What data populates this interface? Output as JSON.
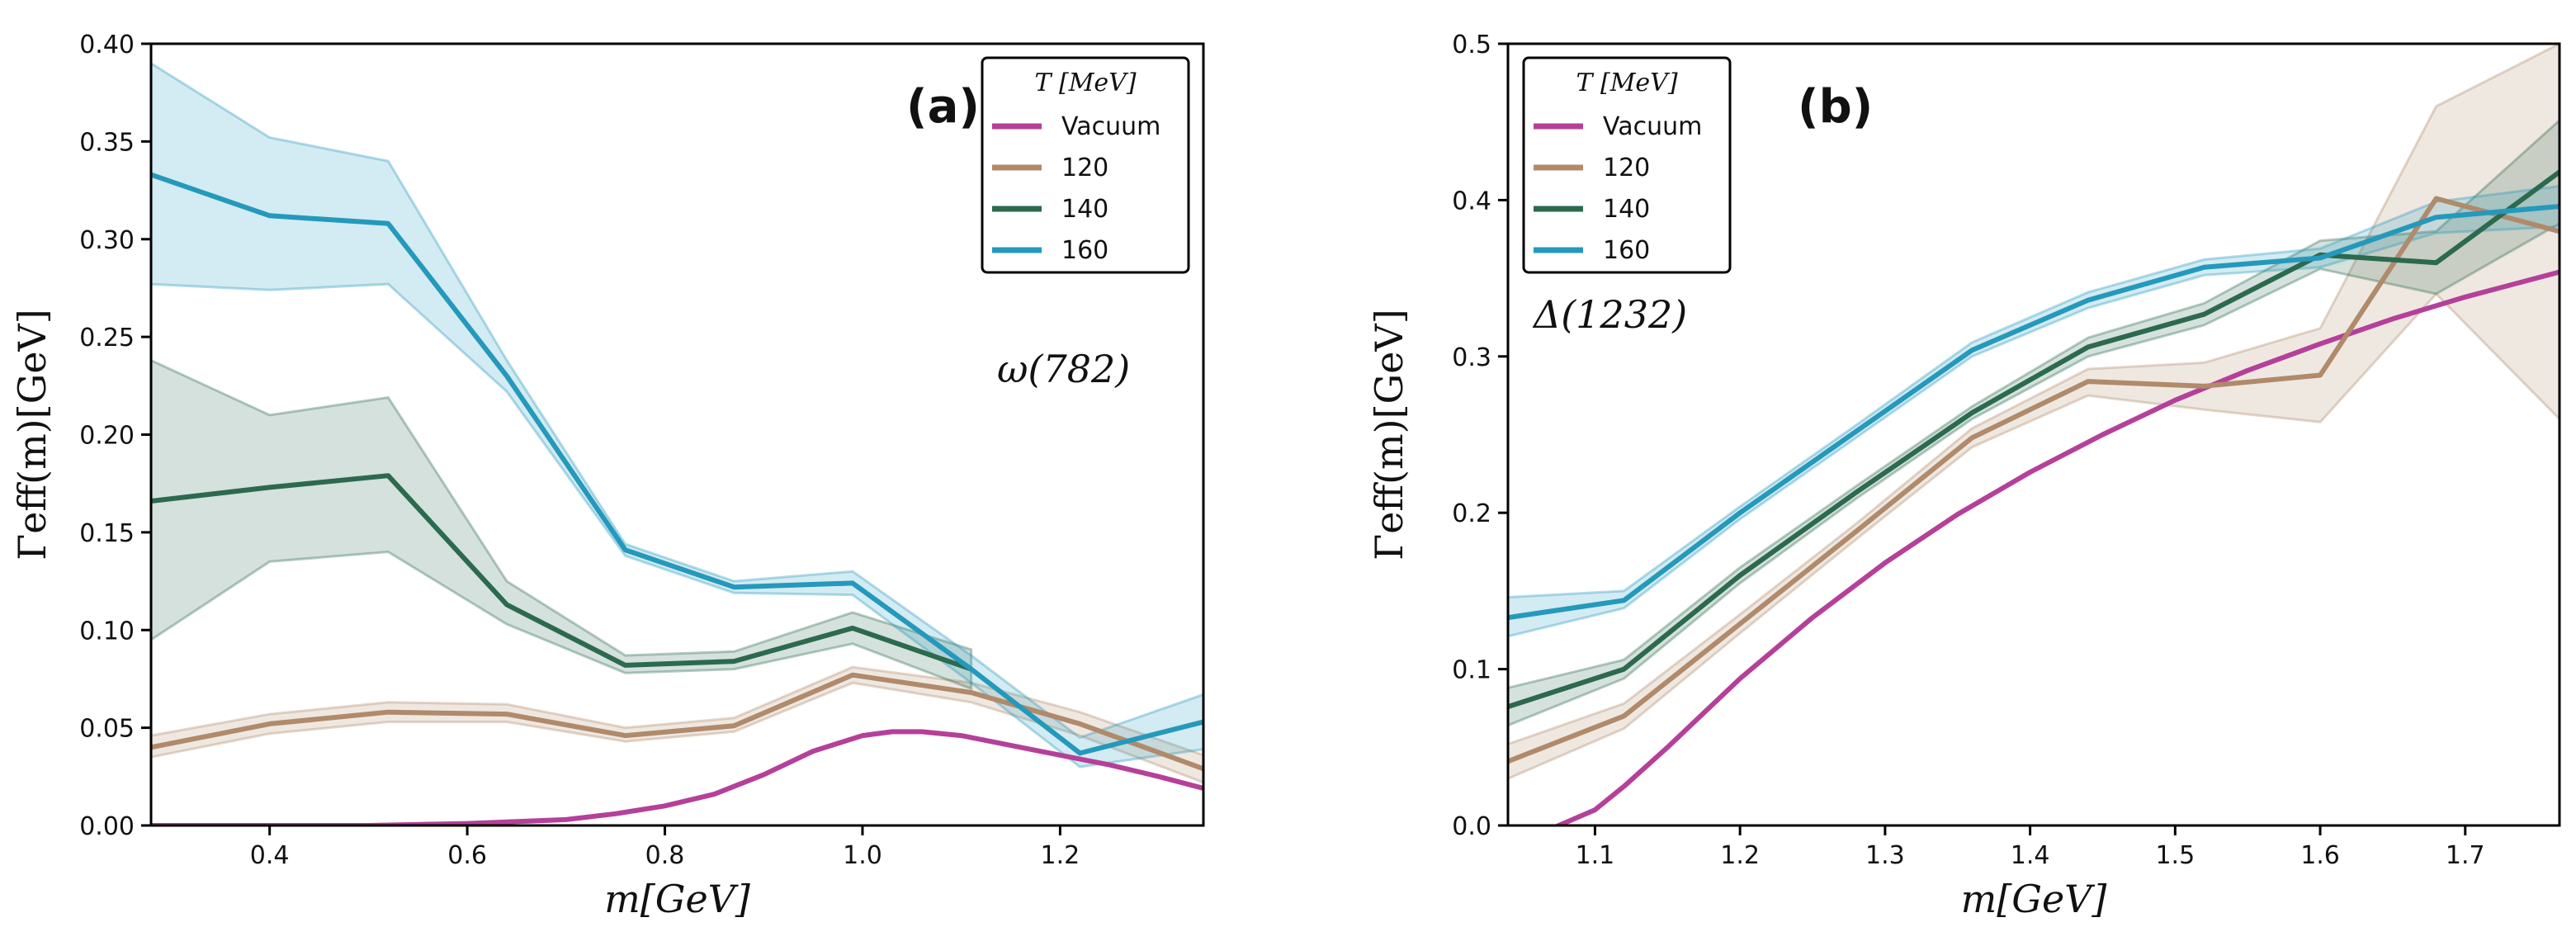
{
  "chart_data": [
    {
      "type": "line",
      "panel": "(a)",
      "panel_label_text": "(a)",
      "panel_letter": "a",
      "annotation": "ω(782)",
      "xlabel": "m[GeV]",
      "ylabel": "Γeff(m)[GeV]",
      "xlim": [
        0.28,
        1.345
      ],
      "ylim": [
        0.0,
        0.4
      ],
      "xticks": [
        0.4,
        0.6,
        0.8,
        1.0,
        1.2
      ],
      "xtick_labels": [
        "0.4",
        "0.6",
        "0.8",
        "1.0",
        "1.2"
      ],
      "yticks": [
        0.0,
        0.05,
        0.1,
        0.15,
        0.2,
        0.25,
        0.3,
        0.35,
        0.4
      ],
      "ytick_labels": [
        "0.00",
        "0.05",
        "0.10",
        "0.15",
        "0.20",
        "0.25",
        "0.30",
        "0.35",
        "0.40"
      ],
      "legend": {
        "title": "T [MeV]",
        "location": "top-right",
        "entries": [
          "Vacuum",
          "120",
          "140",
          "160"
        ]
      },
      "series": [
        {
          "name": "Vacuum",
          "color": "#b5409a",
          "x": [
            0.28,
            0.4,
            0.5,
            0.6,
            0.65,
            0.7,
            0.75,
            0.8,
            0.85,
            0.9,
            0.95,
            1.0,
            1.03,
            1.06,
            1.1,
            1.15,
            1.2,
            1.25,
            1.3,
            1.345
          ],
          "y": [
            0.0,
            0.0,
            0.0,
            0.001,
            0.002,
            0.003,
            0.006,
            0.01,
            0.016,
            0.026,
            0.038,
            0.046,
            0.048,
            0.048,
            0.046,
            0.041,
            0.036,
            0.031,
            0.025,
            0.019
          ]
        },
        {
          "name": "120",
          "color": "#b08a6a",
          "x": [
            0.28,
            0.4,
            0.52,
            0.64,
            0.76,
            0.87,
            0.99,
            1.11,
            1.22,
            1.345
          ],
          "y": [
            0.04,
            0.052,
            0.058,
            0.057,
            0.046,
            0.051,
            0.077,
            0.068,
            0.052,
            0.029
          ],
          "lower": [
            0.035,
            0.047,
            0.053,
            0.053,
            0.043,
            0.048,
            0.073,
            0.063,
            0.046,
            0.022
          ],
          "upper": [
            0.046,
            0.057,
            0.063,
            0.062,
            0.05,
            0.055,
            0.081,
            0.073,
            0.058,
            0.036
          ]
        },
        {
          "name": "140",
          "color": "#2b6a4e",
          "x": [
            0.28,
            0.4,
            0.52,
            0.64,
            0.76,
            0.87,
            0.99,
            1.11
          ],
          "y": [
            0.166,
            0.173,
            0.179,
            0.113,
            0.082,
            0.084,
            0.101,
            0.08
          ],
          "lower": [
            0.095,
            0.135,
            0.14,
            0.103,
            0.078,
            0.08,
            0.093,
            0.07
          ],
          "upper": [
            0.238,
            0.21,
            0.219,
            0.125,
            0.087,
            0.089,
            0.109,
            0.09
          ]
        },
        {
          "name": "160",
          "color": "#2499bc",
          "x": [
            0.28,
            0.4,
            0.52,
            0.64,
            0.76,
            0.87,
            0.99,
            1.11,
            1.22,
            1.345
          ],
          "y": [
            0.333,
            0.312,
            0.308,
            0.23,
            0.141,
            0.122,
            0.124,
            0.08,
            0.037,
            0.053
          ],
          "lower": [
            0.277,
            0.274,
            0.277,
            0.222,
            0.138,
            0.119,
            0.118,
            0.073,
            0.03,
            0.039
          ],
          "upper": [
            0.39,
            0.352,
            0.34,
            0.238,
            0.144,
            0.125,
            0.13,
            0.087,
            0.045,
            0.067
          ]
        }
      ]
    },
    {
      "type": "line",
      "panel": "(b)",
      "panel_label_text": "(b)",
      "panel_letter": "b",
      "annotation": "Δ(1232)",
      "xlabel": "m[GeV]",
      "ylabel": "Γeff(m)[GeV]",
      "xlim": [
        1.04,
        1.765
      ],
      "ylim": [
        0.0,
        0.5
      ],
      "xticks": [
        1.1,
        1.2,
        1.3,
        1.4,
        1.5,
        1.6,
        1.7
      ],
      "xtick_labels": [
        "1.1",
        "1.2",
        "1.3",
        "1.4",
        "1.5",
        "1.6",
        "1.7"
      ],
      "yticks": [
        0.0,
        0.1,
        0.2,
        0.3,
        0.4,
        0.5
      ],
      "ytick_labels": [
        "0.0",
        "0.1",
        "0.2",
        "0.3",
        "0.4",
        "0.5"
      ],
      "legend": {
        "title": "T [MeV]",
        "location": "top-left",
        "entries": [
          "Vacuum",
          "120",
          "140",
          "160"
        ]
      },
      "series": [
        {
          "name": "Vacuum",
          "color": "#b5409a",
          "x": [
            1.07,
            1.1,
            1.12,
            1.15,
            1.2,
            1.25,
            1.3,
            1.35,
            1.4,
            1.45,
            1.5,
            1.55,
            1.6,
            1.65,
            1.7,
            1.765
          ],
          "y": [
            -0.002,
            0.01,
            0.025,
            0.05,
            0.094,
            0.133,
            0.168,
            0.199,
            0.226,
            0.25,
            0.272,
            0.291,
            0.308,
            0.324,
            0.338,
            0.354
          ]
        },
        {
          "name": "120",
          "color": "#b08a6a",
          "x": [
            1.04,
            1.12,
            1.2,
            1.28,
            1.36,
            1.44,
            1.52,
            1.6,
            1.68,
            1.765
          ],
          "y": [
            0.041,
            0.07,
            0.129,
            0.188,
            0.248,
            0.284,
            0.281,
            0.288,
            0.401,
            0.38
          ],
          "lower": [
            0.03,
            0.062,
            0.123,
            0.183,
            0.242,
            0.275,
            0.266,
            0.258,
            0.34,
            0.26
          ],
          "upper": [
            0.052,
            0.078,
            0.135,
            0.193,
            0.254,
            0.292,
            0.296,
            0.318,
            0.46,
            0.5
          ]
        },
        {
          "name": "140",
          "color": "#2b6a4e",
          "x": [
            1.04,
            1.12,
            1.2,
            1.28,
            1.36,
            1.44,
            1.52,
            1.6,
            1.68,
            1.765
          ],
          "y": [
            0.076,
            0.1,
            0.16,
            0.213,
            0.264,
            0.306,
            0.327,
            0.365,
            0.36,
            0.418
          ],
          "lower": [
            0.064,
            0.094,
            0.155,
            0.209,
            0.26,
            0.3,
            0.32,
            0.356,
            0.34,
            0.385
          ],
          "upper": [
            0.088,
            0.106,
            0.165,
            0.217,
            0.268,
            0.312,
            0.334,
            0.374,
            0.38,
            0.451
          ]
        },
        {
          "name": "160",
          "color": "#2499bc",
          "x": [
            1.04,
            1.12,
            1.2,
            1.28,
            1.36,
            1.44,
            1.52,
            1.6,
            1.68,
            1.765
          ],
          "y": [
            0.133,
            0.144,
            0.2,
            0.252,
            0.304,
            0.336,
            0.357,
            0.363,
            0.389,
            0.396
          ],
          "lower": [
            0.121,
            0.139,
            0.196,
            0.248,
            0.3,
            0.331,
            0.352,
            0.357,
            0.379,
            0.383
          ],
          "upper": [
            0.146,
            0.15,
            0.204,
            0.256,
            0.309,
            0.341,
            0.362,
            0.369,
            0.399,
            0.409
          ]
        }
      ]
    }
  ]
}
